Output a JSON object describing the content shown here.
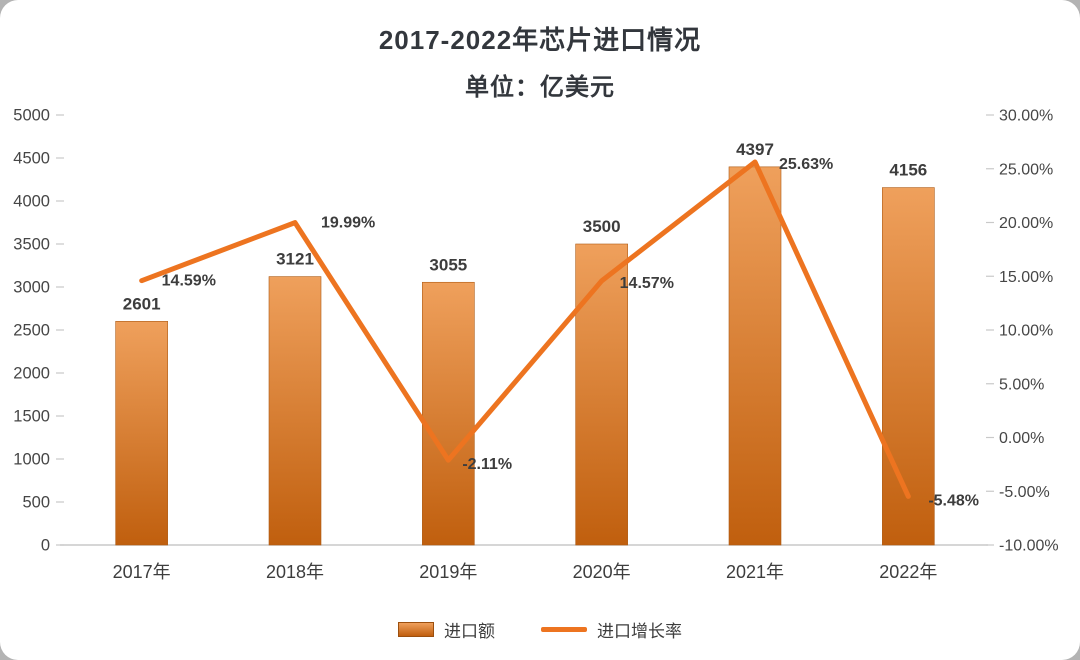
{
  "title": "2017-2022年芯片进口情况",
  "subtitle": "单位：亿美元",
  "chart_data": {
    "type": "combo-bar-line",
    "categories": [
      "2017年",
      "2018年",
      "2019年",
      "2020年",
      "2021年",
      "2022年"
    ],
    "series": [
      {
        "name": "进口额",
        "type": "bar",
        "axis": "left",
        "values": [
          2601,
          3121,
          3055,
          3500,
          4397,
          4156
        ],
        "labels": [
          "2601",
          "3121",
          "3055",
          "3500",
          "4397",
          "4156"
        ]
      },
      {
        "name": "进口增长率",
        "type": "line",
        "axis": "right",
        "values": [
          14.59,
          19.99,
          -2.11,
          14.57,
          25.63,
          -5.48
        ],
        "labels": [
          "14.59%",
          "19.99%",
          "-2.11%",
          "14.57%",
          "25.63%",
          "-5.48%"
        ]
      }
    ],
    "left_axis": {
      "min": 0,
      "max": 5000,
      "step": 500,
      "tick_labels": [
        "0",
        "500",
        "1000",
        "1500",
        "2000",
        "2500",
        "3000",
        "3500",
        "4000",
        "4500",
        "5000"
      ]
    },
    "right_axis": {
      "min": -10,
      "max": 30,
      "step": 5,
      "tick_labels": [
        "-10.00%",
        "-5.00%",
        "0.00%",
        "5.00%",
        "10.00%",
        "15.00%",
        "20.00%",
        "25.00%",
        "30.00%"
      ]
    },
    "legend": [
      {
        "label": "进口额",
        "swatch": "bar"
      },
      {
        "label": "进口增长率",
        "swatch": "line"
      }
    ],
    "grid": "off",
    "legend_position": "bottom",
    "colors": {
      "bar_top": "#EFA05C",
      "bar_bottom": "#C05F0E",
      "bar_border": "#AD5A14",
      "line": "#ED7420",
      "label_text": "#3D3D3D",
      "axis_text": "#464646",
      "baseline": "#C9C9C9"
    }
  }
}
